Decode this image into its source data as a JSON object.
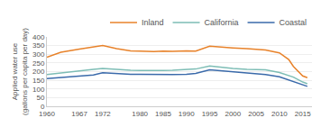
{
  "chart_data": {
    "type": "line",
    "ylabel": "Applied water use\n(gallons per capita per day)",
    "x": [
      1960,
      1963,
      1967,
      1970,
      1972,
      1975,
      1978,
      1980,
      1983,
      1985,
      1987,
      1990,
      1992,
      1995,
      1997,
      2000,
      2003,
      2005,
      2007,
      2010,
      2012,
      2013,
      2015,
      2016
    ],
    "series": [
      {
        "name": "Inland",
        "color": "#e8822a",
        "line_style": "solid",
        "values": [
          283,
          312,
          330,
          340,
          350,
          333,
          320,
          318,
          315,
          318,
          317,
          320,
          318,
          347,
          342,
          337,
          332,
          330,
          325,
          308,
          270,
          230,
          175,
          165
        ]
      },
      {
        "name": "California",
        "color": "#7dbdb5",
        "line_style": "solid",
        "values": [
          183,
          193,
          205,
          213,
          218,
          212,
          208,
          207,
          205,
          207,
          208,
          212,
          215,
          232,
          225,
          218,
          213,
          213,
          210,
          195,
          178,
          168,
          140,
          130
        ]
      },
      {
        "name": "Coastal",
        "color": "#3a6aaa",
        "line_style": "solid",
        "values": [
          160,
          165,
          172,
          180,
          193,
          187,
          184,
          184,
          182,
          183,
          183,
          185,
          190,
          210,
          205,
          200,
          193,
          188,
          183,
          170,
          152,
          143,
          123,
          115
        ]
      }
    ],
    "xlim": [
      1960,
      2017
    ],
    "xticks": [
      1960,
      1967,
      1972,
      1980,
      1985,
      1990,
      1995,
      2000,
      2005,
      2010,
      2015
    ],
    "ylim": [
      0,
      400
    ],
    "yticks": [
      0,
      50,
      100,
      150,
      200,
      250,
      300,
      350,
      400
    ],
    "grid": true,
    "legend": "upper right"
  }
}
